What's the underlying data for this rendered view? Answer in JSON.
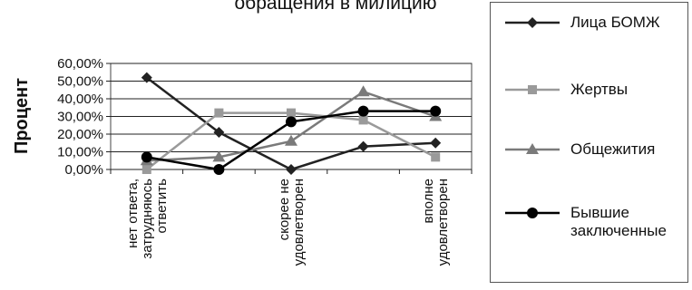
{
  "chart_data": {
    "type": "line",
    "title": "обращения в милицию",
    "ylabel": "Процент",
    "xlabel": "",
    "ylim": [
      0,
      60
    ],
    "y_ticks": [
      "0,00%",
      "10,00%",
      "20,00%",
      "30,00%",
      "40,00%",
      "50,00%",
      "60,00%"
    ],
    "categories": [
      "нет ответа, затрудняюсь ответить",
      "",
      "скорее не удовлетворен",
      "",
      "вполне удовлетворен"
    ],
    "category_labels": [
      [
        "нет ответа,",
        "затрудняюсь",
        "ответить"
      ],
      [],
      [
        "скорее не",
        "удовлетворен"
      ],
      [],
      [
        "вполне",
        "удовлетворен"
      ]
    ],
    "grid": true,
    "legend_position": "right",
    "series": [
      {
        "name": "Лица БОМЖ",
        "marker": "diamond",
        "color": "#222222",
        "values": [
          52,
          21,
          0,
          13,
          15
        ]
      },
      {
        "name": "Жертвы",
        "marker": "square",
        "color": "#9a9a9a",
        "values": [
          0,
          32,
          32,
          28,
          7
        ]
      },
      {
        "name": "Общежития",
        "marker": "triangle",
        "color": "#7a7a7a",
        "values": [
          5,
          7,
          16,
          44,
          30
        ]
      },
      {
        "name": "Бывшие заключенные",
        "marker": "circle",
        "color": "#000000",
        "values": [
          7,
          0,
          27,
          33,
          33
        ]
      }
    ]
  }
}
